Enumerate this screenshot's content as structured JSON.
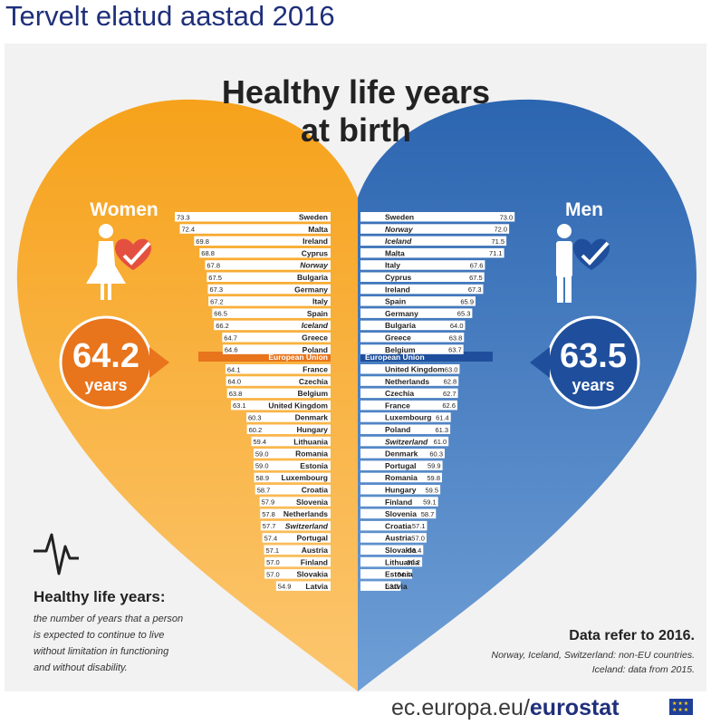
{
  "page": {
    "title": "Tervelt elatud aastad 2016",
    "footer_prefix": "ec.europa.eu/",
    "footer_brand": "eurostat"
  },
  "infographic": {
    "title_line1": "Healthy life years",
    "title_line2": "at birth",
    "women_label": "Women",
    "men_label": "Men",
    "women_value": "64.2",
    "men_value": "63.5",
    "years_label": "years",
    "eu_label": "European Union",
    "definition_title": "Healthy life years:",
    "definition_lines": [
      "the number of years that a person",
      "is expected to continue to live",
      "without limitation in functioning",
      "and without disability."
    ],
    "note_title": "Data refer to 2016.",
    "note_lines": [
      "Norway, Iceland, Switzerland: non-EU countries.",
      "Iceland: data from 2015."
    ]
  },
  "colors": {
    "women": "#f4a21e",
    "men": "#2f6db5",
    "women_accent": "#e8741c",
    "men_accent": "#1f4f9c",
    "title_blue": "#1f2f7a",
    "heart_pink": "#e4503f"
  },
  "chart_data": {
    "type": "bar",
    "unit": "years",
    "eu_averages": {
      "women": 64.2,
      "men": 63.5
    },
    "series": [
      {
        "name": "Women",
        "above_eu": [
          {
            "country": "Sweden",
            "value": 73.3,
            "italic": false
          },
          {
            "country": "Malta",
            "value": 72.4,
            "italic": false
          },
          {
            "country": "Ireland",
            "value": 69.8,
            "italic": false
          },
          {
            "country": "Cyprus",
            "value": 68.8,
            "italic": false
          },
          {
            "country": "Norway",
            "value": 67.8,
            "italic": true
          },
          {
            "country": "Bulgaria",
            "value": 67.5,
            "italic": false
          },
          {
            "country": "Germany",
            "value": 67.3,
            "italic": false
          },
          {
            "country": "Italy",
            "value": 67.2,
            "italic": false
          },
          {
            "country": "Spain",
            "value": 66.5,
            "italic": false
          },
          {
            "country": "Iceland",
            "value": 66.2,
            "italic": true
          },
          {
            "country": "Greece",
            "value": 64.7,
            "italic": false
          },
          {
            "country": "Poland",
            "value": 64.6,
            "italic": false
          }
        ],
        "below_eu": [
          {
            "country": "France",
            "value": 64.1,
            "italic": false
          },
          {
            "country": "Czechia",
            "value": 64.0,
            "italic": false
          },
          {
            "country": "Belgium",
            "value": 63.8,
            "italic": false
          },
          {
            "country": "United Kingdom",
            "value": 63.1,
            "italic": false
          },
          {
            "country": "Denmark",
            "value": 60.3,
            "italic": false
          },
          {
            "country": "Hungary",
            "value": 60.2,
            "italic": false
          },
          {
            "country": "Lithuania",
            "value": 59.4,
            "italic": false
          },
          {
            "country": "Romania",
            "value": 59.0,
            "italic": false
          },
          {
            "country": "Estonia",
            "value": 59.0,
            "italic": false
          },
          {
            "country": "Luxembourg",
            "value": 58.9,
            "italic": false
          },
          {
            "country": "Croatia",
            "value": 58.7,
            "italic": false
          },
          {
            "country": "Slovenia",
            "value": 57.9,
            "italic": false
          },
          {
            "country": "Netherlands",
            "value": 57.8,
            "italic": false
          },
          {
            "country": "Switzerland",
            "value": 57.7,
            "italic": true
          },
          {
            "country": "Portugal",
            "value": 57.4,
            "italic": false
          },
          {
            "country": "Austria",
            "value": 57.1,
            "italic": false
          },
          {
            "country": "Finland",
            "value": 57.0,
            "italic": false
          },
          {
            "country": "Slovakia",
            "value": 57.0,
            "italic": false
          },
          {
            "country": "Latvia",
            "value": 54.9,
            "italic": false
          }
        ]
      },
      {
        "name": "Men",
        "above_eu": [
          {
            "country": "Sweden",
            "value": 73.0,
            "italic": false
          },
          {
            "country": "Norway",
            "value": 72.0,
            "italic": true
          },
          {
            "country": "Iceland",
            "value": 71.5,
            "italic": true
          },
          {
            "country": "Malta",
            "value": 71.1,
            "italic": false
          },
          {
            "country": "Italy",
            "value": 67.6,
            "italic": false
          },
          {
            "country": "Cyprus",
            "value": 67.5,
            "italic": false
          },
          {
            "country": "Ireland",
            "value": 67.3,
            "italic": false
          },
          {
            "country": "Spain",
            "value": 65.9,
            "italic": false
          },
          {
            "country": "Germany",
            "value": 65.3,
            "italic": false
          },
          {
            "country": "Bulgaria",
            "value": 64.0,
            "italic": false
          },
          {
            "country": "Greece",
            "value": 63.8,
            "italic": false
          },
          {
            "country": "Belgium",
            "value": 63.7,
            "italic": false
          }
        ],
        "below_eu": [
          {
            "country": "United Kingdom",
            "value": 63.0,
            "italic": false
          },
          {
            "country": "Netherlands",
            "value": 62.8,
            "italic": false
          },
          {
            "country": "Czechia",
            "value": 62.7,
            "italic": false
          },
          {
            "country": "France",
            "value": 62.6,
            "italic": false
          },
          {
            "country": "Luxembourg",
            "value": 61.4,
            "italic": false
          },
          {
            "country": "Poland",
            "value": 61.3,
            "italic": false
          },
          {
            "country": "Switzerland",
            "value": 61.0,
            "italic": true
          },
          {
            "country": "Denmark",
            "value": 60.3,
            "italic": false
          },
          {
            "country": "Portugal",
            "value": 59.9,
            "italic": false
          },
          {
            "country": "Romania",
            "value": 59.8,
            "italic": false
          },
          {
            "country": "Hungary",
            "value": 59.5,
            "italic": false
          },
          {
            "country": "Finland",
            "value": 59.1,
            "italic": false
          },
          {
            "country": "Slovenia",
            "value": 58.7,
            "italic": false
          },
          {
            "country": "Croatia",
            "value": 57.1,
            "italic": false
          },
          {
            "country": "Austria",
            "value": 57.0,
            "italic": false
          },
          {
            "country": "Slovakia",
            "value": 56.4,
            "italic": false
          },
          {
            "country": "Lithuania",
            "value": 56.2,
            "italic": false
          },
          {
            "country": "Estonia",
            "value": 54.4,
            "italic": false
          },
          {
            "country": "Latvia",
            "value": 52.3,
            "italic": false
          }
        ]
      }
    ]
  }
}
